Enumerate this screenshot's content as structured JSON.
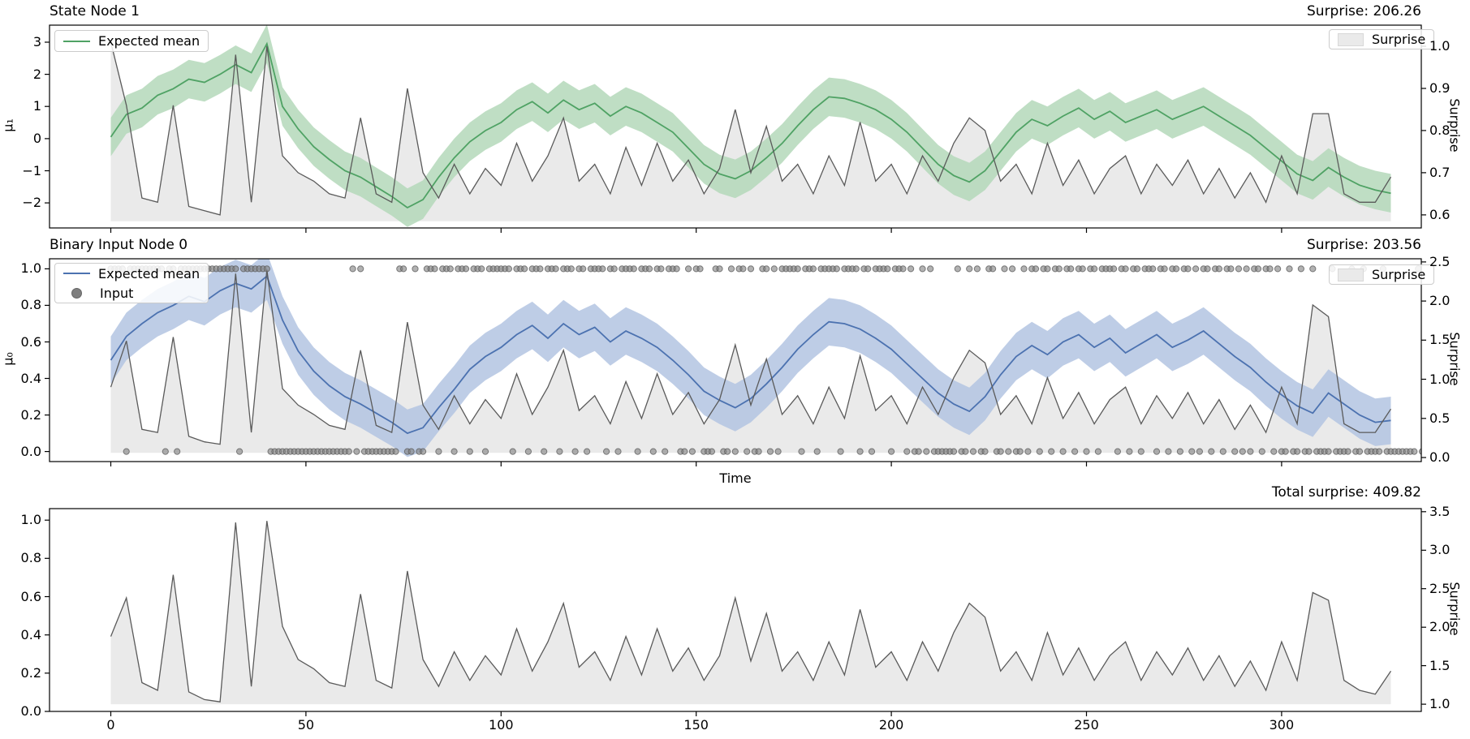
{
  "colors": {
    "green_line": "#4fa264",
    "green_band": "#b4d8ba",
    "blue_line": "#4c72b0",
    "blue_band": "#b3c4e2",
    "surprise_line": "#5a5a5a",
    "area_fill": "#eaeaea",
    "dot_fill": "#7f7f7f",
    "axis_color": "#000000"
  },
  "x_axis": {
    "label": "Time",
    "ticks": {
      "values": [
        0,
        50,
        100,
        150,
        200,
        250,
        300
      ],
      "labels": [
        "0",
        "50",
        "100",
        "150",
        "200",
        "250",
        "300"
      ]
    }
  },
  "chart_data": [
    {
      "type": "line",
      "title": "State Node 1",
      "right_title": "Surprise: 206.26",
      "ylabel": "μ₁",
      "right_ylabel": "Surprise",
      "xlim": [
        -15.7,
        335.8
      ],
      "ylim_left": [
        -2.78,
        3.53
      ],
      "ylim_right": [
        0.569,
        1.05
      ],
      "yticks_left": {
        "values": [
          3,
          2,
          1,
          0,
          -1,
          -2
        ],
        "labels": [
          "3",
          "2",
          "1",
          "0",
          "−1",
          "−2"
        ]
      },
      "yticks_right": {
        "values": [
          1.0,
          0.9,
          0.8,
          0.7,
          0.6
        ],
        "labels": [
          "1.0",
          "0.9",
          "0.8",
          "0.7",
          "0.6"
        ]
      },
      "legend": [
        {
          "label": "Expected mean",
          "swatch": "green-line"
        }
      ],
      "legend_right": [
        {
          "label": "Surprise",
          "swatch": "patch"
        }
      ],
      "x_start": 0,
      "x_step": 4,
      "band_halfwidth": 0.6,
      "mean": [
        0.05,
        0.75,
        0.95,
        1.35,
        1.55,
        1.85,
        1.75,
        2.0,
        2.3,
        2.05,
        2.95,
        1.0,
        0.3,
        -0.25,
        -0.65,
        -1.0,
        -1.2,
        -1.5,
        -1.8,
        -2.15,
        -1.9,
        -1.2,
        -0.6,
        -0.1,
        0.25,
        0.5,
        0.9,
        1.15,
        0.8,
        1.2,
        0.9,
        1.1,
        0.7,
        1.0,
        0.8,
        0.5,
        0.2,
        -0.3,
        -0.8,
        -1.1,
        -1.25,
        -1.0,
        -0.6,
        -0.15,
        0.4,
        0.9,
        1.3,
        1.25,
        1.1,
        0.9,
        0.6,
        0.2,
        -0.3,
        -0.8,
        -1.15,
        -1.35,
        -1.0,
        -0.4,
        0.2,
        0.6,
        0.4,
        0.7,
        0.95,
        0.6,
        0.85,
        0.5,
        0.7,
        0.9,
        0.6,
        0.8,
        1.0,
        0.7,
        0.4,
        0.1,
        -0.3,
        -0.7,
        -1.1,
        -1.3,
        -0.9,
        -1.2,
        -1.45,
        -1.6,
        -1.7
      ],
      "surprise_baseline": 0.585,
      "surprise": [
        1.01,
        0.86,
        0.64,
        0.63,
        0.86,
        0.62,
        0.61,
        0.6,
        0.98,
        0.63,
        1.0,
        0.74,
        0.7,
        0.68,
        0.65,
        0.64,
        0.83,
        0.65,
        0.63,
        0.9,
        0.7,
        0.64,
        0.72,
        0.65,
        0.71,
        0.67,
        0.77,
        0.68,
        0.74,
        0.83,
        0.68,
        0.72,
        0.65,
        0.76,
        0.67,
        0.77,
        0.68,
        0.73,
        0.65,
        0.71,
        0.85,
        0.7,
        0.81,
        0.68,
        0.72,
        0.65,
        0.74,
        0.67,
        0.82,
        0.68,
        0.72,
        0.65,
        0.74,
        0.68,
        0.77,
        0.83,
        0.8,
        0.68,
        0.72,
        0.65,
        0.77,
        0.67,
        0.73,
        0.65,
        0.71,
        0.74,
        0.65,
        0.72,
        0.67,
        0.73,
        0.65,
        0.71,
        0.64,
        0.7,
        0.63,
        0.74,
        0.65,
        0.84,
        0.84,
        0.65,
        0.63,
        0.63,
        0.69
      ]
    },
    {
      "type": "line",
      "title": "Binary Input Node 0",
      "right_title": "Surprise: 203.56",
      "ylabel": "μ₀",
      "right_ylabel": "Surprise",
      "xlim": [
        -15.7,
        335.8
      ],
      "ylim_left": [
        -0.055,
        1.055
      ],
      "ylim_right": [
        -0.052,
        2.54
      ],
      "yticks_left": {
        "values": [
          1.0,
          0.8,
          0.6,
          0.4,
          0.2,
          0.0
        ],
        "labels": [
          "1.0",
          "0.8",
          "0.6",
          "0.4",
          "0.2",
          "0.0"
        ]
      },
      "yticks_right": {
        "values": [
          2.5,
          2.0,
          1.5,
          1.0,
          0.5,
          0.0
        ],
        "labels": [
          "2.5",
          "2.0",
          "1.5",
          "1.0",
          "0.5",
          "0.0"
        ]
      },
      "legend": [
        {
          "label": "Expected mean",
          "swatch": "blue-line"
        },
        {
          "label": "Input",
          "swatch": "dot"
        }
      ],
      "legend_right": [
        {
          "label": "Surprise",
          "swatch": "patch"
        }
      ],
      "x_start": 0,
      "x_step": 4,
      "band_halfwidth": 0.13,
      "mean": [
        0.5,
        0.63,
        0.7,
        0.76,
        0.8,
        0.85,
        0.82,
        0.88,
        0.92,
        0.89,
        0.96,
        0.72,
        0.55,
        0.44,
        0.36,
        0.3,
        0.26,
        0.21,
        0.16,
        0.1,
        0.13,
        0.24,
        0.34,
        0.45,
        0.52,
        0.57,
        0.64,
        0.69,
        0.62,
        0.7,
        0.64,
        0.68,
        0.6,
        0.66,
        0.62,
        0.57,
        0.5,
        0.42,
        0.33,
        0.28,
        0.24,
        0.29,
        0.37,
        0.46,
        0.56,
        0.64,
        0.71,
        0.7,
        0.67,
        0.62,
        0.56,
        0.48,
        0.4,
        0.32,
        0.26,
        0.22,
        0.3,
        0.42,
        0.52,
        0.58,
        0.53,
        0.6,
        0.64,
        0.57,
        0.62,
        0.54,
        0.59,
        0.64,
        0.57,
        0.61,
        0.66,
        0.59,
        0.52,
        0.46,
        0.38,
        0.31,
        0.25,
        0.21,
        0.32,
        0.26,
        0.2,
        0.16,
        0.17
      ],
      "surprise_baseline": 0.06,
      "surprise": [
        0.9,
        1.49,
        0.36,
        0.32,
        1.54,
        0.27,
        0.2,
        0.17,
        2.35,
        0.32,
        2.4,
        0.88,
        0.67,
        0.55,
        0.41,
        0.36,
        1.37,
        0.41,
        0.32,
        1.73,
        0.67,
        0.36,
        0.79,
        0.43,
        0.74,
        0.5,
        1.07,
        0.55,
        0.9,
        1.37,
        0.6,
        0.79,
        0.43,
        0.97,
        0.5,
        1.07,
        0.55,
        0.83,
        0.43,
        0.74,
        1.44,
        0.67,
        1.26,
        0.55,
        0.79,
        0.43,
        0.9,
        0.5,
        1.3,
        0.6,
        0.79,
        0.43,
        0.9,
        0.55,
        1.02,
        1.37,
        1.21,
        0.55,
        0.79,
        0.43,
        1.02,
        0.5,
        0.83,
        0.43,
        0.74,
        0.9,
        0.43,
        0.79,
        0.5,
        0.83,
        0.43,
        0.74,
        0.36,
        0.67,
        0.32,
        0.9,
        0.43,
        1.95,
        1.8,
        0.43,
        0.32,
        0.32,
        0.62
      ],
      "inputs": "11110111111111011011111111111111101111111000000000000000000000101000000000110010011101110111011101111110111011101110111011011110110111101110110111001011000110010110100110101111101110111110111101101111011101001010000001001010011001010010110110110110110110111101101101110110110110101101101101010110110100100100100001000010010000100000000100000"
    },
    {
      "type": "area",
      "title": "",
      "right_title": "Total surprise: 409.82",
      "ylabel": "",
      "right_ylabel": "Surprise",
      "xlim": [
        -15.7,
        335.8
      ],
      "ylim_left": [
        0.0,
        1.06
      ],
      "ylim_right": [
        0.906,
        3.54
      ],
      "yticks_left": {
        "values": [
          1.0,
          0.8,
          0.6,
          0.4,
          0.2,
          0.0
        ],
        "labels": [
          "1.0",
          "0.8",
          "0.6",
          "0.4",
          "0.2",
          "0.0"
        ]
      },
      "yticks_right": {
        "values": [
          3.5,
          3.0,
          2.5,
          2.0,
          1.5,
          1.0
        ],
        "labels": [
          "3.5",
          "3.0",
          "2.5",
          "2.0",
          "1.5",
          "1.0"
        ]
      },
      "legend": [],
      "legend_right": [],
      "x_start": 0,
      "x_step": 4,
      "surprise_baseline": 1.0,
      "surprise": [
        1.88,
        2.38,
        1.28,
        1.18,
        2.68,
        1.16,
        1.06,
        1.03,
        3.36,
        1.23,
        3.38,
        2.01,
        1.58,
        1.46,
        1.28,
        1.23,
        2.43,
        1.31,
        1.21,
        2.73,
        1.58,
        1.23,
        1.68,
        1.31,
        1.63,
        1.38,
        1.98,
        1.43,
        1.81,
        2.31,
        1.48,
        1.68,
        1.31,
        1.88,
        1.38,
        1.98,
        1.43,
        1.73,
        1.31,
        1.63,
        2.38,
        1.56,
        2.18,
        1.43,
        1.68,
        1.31,
        1.81,
        1.38,
        2.23,
        1.48,
        1.68,
        1.31,
        1.81,
        1.43,
        1.93,
        2.31,
        2.13,
        1.43,
        1.68,
        1.31,
        1.93,
        1.38,
        1.73,
        1.31,
        1.63,
        1.81,
        1.31,
        1.68,
        1.38,
        1.73,
        1.31,
        1.63,
        1.23,
        1.56,
        1.18,
        1.81,
        1.31,
        2.45,
        2.35,
        1.31,
        1.18,
        1.13,
        1.43
      ]
    }
  ]
}
